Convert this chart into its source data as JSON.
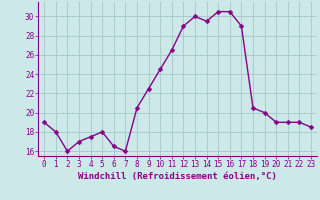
{
  "x": [
    0,
    1,
    2,
    3,
    4,
    5,
    6,
    7,
    8,
    9,
    10,
    11,
    12,
    13,
    14,
    15,
    16,
    17,
    18,
    19,
    20,
    21,
    22,
    23
  ],
  "y": [
    19,
    18,
    16,
    17,
    17.5,
    18,
    16.5,
    16,
    20.5,
    22.5,
    24.5,
    26.5,
    29,
    30,
    29.5,
    30.5,
    30.5,
    29,
    20.5,
    20,
    19,
    19,
    19,
    18.5
  ],
  "line_color": "#880088",
  "marker_color": "#880088",
  "bg_color": "#cce8e8",
  "grid_color": "#aacccc",
  "xlabel": "Windchill (Refroidissement éolien,°C)",
  "ylim": [
    15.5,
    31.5
  ],
  "xlim": [
    -0.5,
    23.5
  ],
  "yticks": [
    16,
    18,
    20,
    22,
    24,
    26,
    28,
    30
  ],
  "xticks": [
    0,
    1,
    2,
    3,
    4,
    5,
    6,
    7,
    8,
    9,
    10,
    11,
    12,
    13,
    14,
    15,
    16,
    17,
    18,
    19,
    20,
    21,
    22,
    23
  ],
  "tick_label_color": "#880088",
  "xlabel_color": "#880088",
  "xlabel_fontsize": 6.5,
  "tick_fontsize": 5.5,
  "spine_color": "#880088",
  "marker_size": 2.5,
  "line_width": 1.0
}
